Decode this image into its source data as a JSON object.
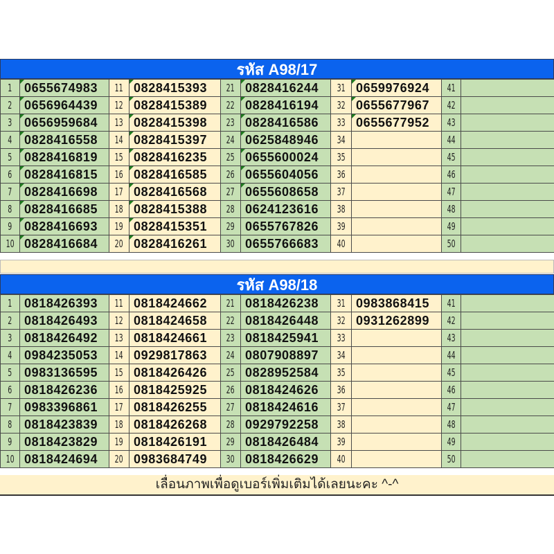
{
  "colors": {
    "header": "#0b63ee",
    "green": "#c6e0b4",
    "cream": "#fff2cc",
    "marker": "#1e7a1e"
  },
  "tables": [
    {
      "title": "รหัส A98/17",
      "columns": [
        {
          "start": 1,
          "numbers": [
            "0655674983",
            "0656964439",
            "0656959684",
            "0828416558",
            "0828416819",
            "0828416815",
            "0828416698",
            "0828416685",
            "0828416693",
            "0828416684"
          ],
          "marked": 10
        },
        {
          "start": 11,
          "numbers": [
            "0828415393",
            "0828415389",
            "0828415398",
            "0828415397",
            "0828416235",
            "0828416585",
            "0828416568",
            "0828415388",
            "0828415351",
            "0828416261"
          ],
          "marked": 10
        },
        {
          "start": 21,
          "numbers": [
            "0828416244",
            "0828416194",
            "0828416586",
            "0625848946",
            "0655600024",
            "0655604056",
            "0655608658",
            "0624123616",
            "0655767826",
            "0655766683"
          ],
          "marked": 7
        },
        {
          "start": 31,
          "numbers": [
            "0659976924",
            "0655677967",
            "0655677952",
            "",
            "",
            "",
            "",
            "",
            "",
            ""
          ],
          "marked": 3
        },
        {
          "start": 41,
          "numbers": [
            "",
            "",
            "",
            "",
            "",
            "",
            "",
            "",
            "",
            ""
          ],
          "marked": 0
        }
      ]
    },
    {
      "title": "รหัส A98/18",
      "columns": [
        {
          "start": 1,
          "numbers": [
            "0818426393",
            "0818426493",
            "0818426492",
            "0984235053",
            "0983136595",
            "0818426236",
            "0983396861",
            "0818423839",
            "0818423829",
            "0818424694"
          ],
          "marked": 0
        },
        {
          "start": 11,
          "numbers": [
            "0818424662",
            "0818424658",
            "0818424661",
            "0929817863",
            "0818426426",
            "0818425925",
            "0818426255",
            "0818426268",
            "0818426191",
            "0983684749"
          ],
          "marked": 0
        },
        {
          "start": 21,
          "numbers": [
            "0818426238",
            "0818426448",
            "0818425941",
            "0807908897",
            "0828952584",
            "0818424626",
            "0818424616",
            "0929792258",
            "0818426484",
            "0818426629"
          ],
          "marked": 0
        },
        {
          "start": 31,
          "numbers": [
            "0983868415",
            "0931262899",
            "",
            "",
            "",
            "",
            "",
            "",
            "",
            ""
          ],
          "marked": 0
        },
        {
          "start": 41,
          "numbers": [
            "",
            "",
            "",
            "",
            "",
            "",
            "",
            "",
            "",
            ""
          ],
          "marked": 0
        }
      ]
    }
  ],
  "footer": "เลื่อนภาพเพื่อดูเบอร์เพิ่มเติมได้เลยนะคะ ^-^"
}
